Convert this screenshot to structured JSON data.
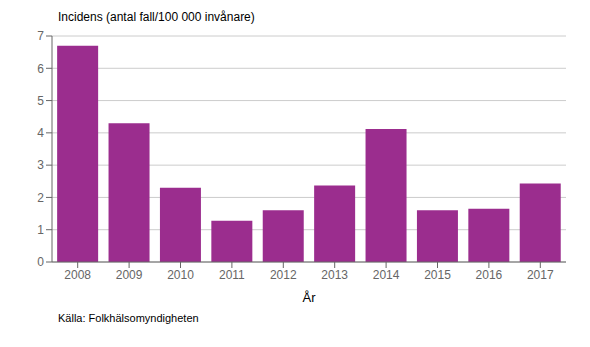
{
  "chart_data": {
    "type": "bar",
    "ylabel": "Incidens (antal fall/100 000 invånare)",
    "xlabel": "År",
    "annotations": [
      "Källa: Folkhälsomyndigheten"
    ],
    "categories": [
      "2008",
      "2009",
      "2010",
      "2011",
      "2012",
      "2013",
      "2014",
      "2015",
      "2016",
      "2017"
    ],
    "values": [
      6.7,
      4.3,
      2.3,
      1.28,
      1.6,
      2.37,
      4.12,
      1.6,
      1.65,
      2.43
    ],
    "color": "#9B2D8E",
    "ylim": [
      0,
      7
    ],
    "yticks": [
      0,
      1,
      2,
      3,
      4,
      5,
      6,
      7
    ],
    "grid": true
  }
}
